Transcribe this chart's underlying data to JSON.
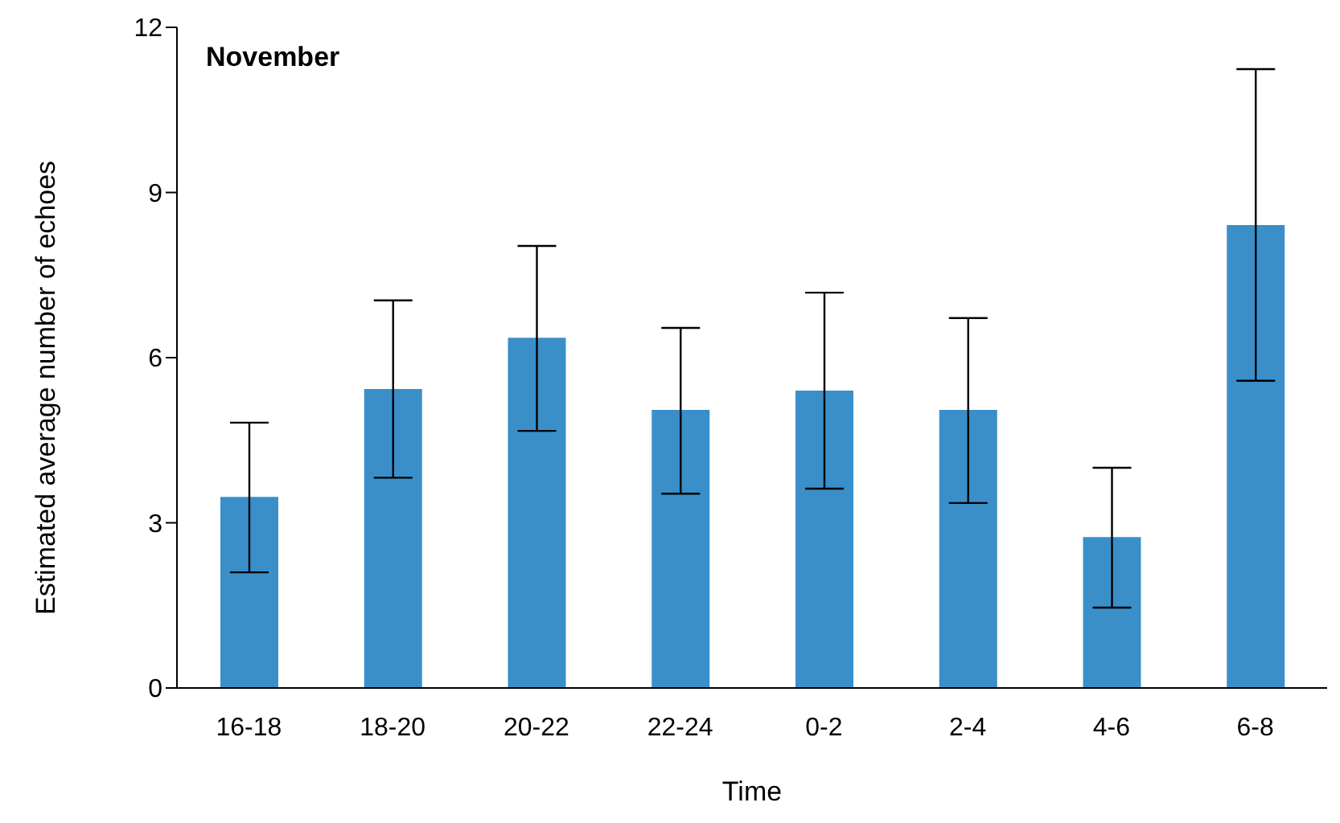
{
  "chart_data": {
    "type": "bar",
    "title": "November",
    "xlabel": "Time",
    "ylabel": "Estimated average number of echoes",
    "categories": [
      "16-18",
      "18-20",
      "20-22",
      "22-24",
      "0-2",
      "2-4",
      "4-6",
      "6-8"
    ],
    "values": [
      3.47,
      5.43,
      6.36,
      5.05,
      5.4,
      5.05,
      2.74,
      8.41
    ],
    "errors": [
      [
        2.1,
        4.82
      ],
      [
        3.82,
        7.04
      ],
      [
        4.67,
        8.03
      ],
      [
        3.53,
        6.54
      ],
      [
        3.62,
        7.18
      ],
      [
        3.36,
        6.72
      ],
      [
        1.46,
        4.0
      ],
      [
        5.58,
        11.24
      ]
    ],
    "color": "#3a8fc9",
    "ylim": [
      0,
      12
    ],
    "yticks": [
      0,
      3,
      6,
      9,
      12
    ],
    "grid": false,
    "legend": false
  }
}
